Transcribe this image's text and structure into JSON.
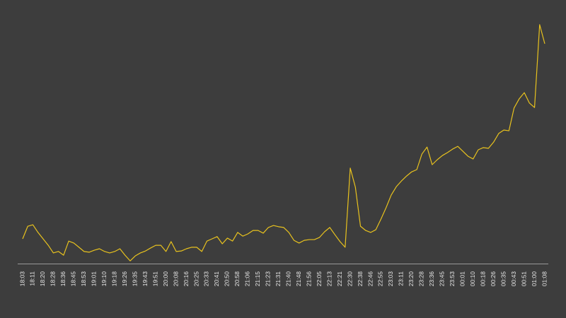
{
  "chart_data": {
    "type": "line",
    "categories": [
      "18:03",
      null,
      "18:11",
      null,
      "18:20",
      null,
      "18:28",
      null,
      "18:36",
      null,
      "18:45",
      null,
      "18:53",
      null,
      "19:01",
      null,
      "19:10",
      null,
      "19:18",
      null,
      "19:26",
      null,
      "19:35",
      null,
      "19:43",
      null,
      "19:51",
      null,
      "20:00",
      null,
      "20:08",
      null,
      "20:16",
      null,
      "20:25",
      null,
      "20:33",
      null,
      "20:41",
      null,
      "20:50",
      null,
      "20:58",
      null,
      "21:06",
      null,
      "21:15",
      null,
      "21:23",
      null,
      "21:31",
      null,
      "21:40",
      null,
      "21:48",
      null,
      "21:56",
      null,
      "22:05",
      null,
      "22:13",
      null,
      "22:21",
      null,
      "22:30",
      null,
      "22:38",
      null,
      "22:46",
      null,
      "22:55",
      null,
      "23:03",
      null,
      "23:11",
      null,
      "23:20",
      null,
      "23:28",
      null,
      "23:36",
      null,
      "23:45",
      null,
      "23:53",
      null,
      "00:01",
      null,
      "00:10",
      null,
      "00:18",
      null,
      "00:26",
      null,
      "00:35",
      null,
      "00:43",
      null,
      "00:51",
      null,
      "01:00",
      null,
      "01:08"
    ],
    "values": [
      10,
      15.1,
      15.7,
      12.6,
      10,
      7.4,
      4.3,
      4.9,
      3.4,
      9.1,
      8.3,
      6.6,
      4.9,
      4.6,
      5.4,
      6,
      4.9,
      4.3,
      4.9,
      6,
      3.4,
      1.1,
      3.1,
      4.3,
      5.1,
      6.3,
      7.4,
      7.4,
      4.9,
      8.9,
      4.9,
      5.1,
      6,
      6.6,
      6.6,
      4.9,
      9.1,
      10,
      10.9,
      8,
      10.3,
      9.1,
      12.6,
      11.1,
      12,
      13.4,
      13.4,
      12.3,
      14.6,
      15.4,
      14.9,
      14.6,
      12.6,
      9.4,
      8.3,
      9.4,
      9.7,
      9.7,
      10.6,
      12.9,
      14.6,
      11.7,
      8.9,
      6.6,
      38.6,
      30.9,
      15.1,
      13.4,
      12.6,
      13.7,
      18,
      22.6,
      27.7,
      31.1,
      33.4,
      35.4,
      37.1,
      38,
      44.3,
      47.1,
      40,
      42,
      43.7,
      44.9,
      46.3,
      47.4,
      45.4,
      43.4,
      42.3,
      46,
      46.9,
      46.6,
      49.1,
      52.6,
      54,
      53.7,
      62.9,
      66.6,
      69.1,
      64.9,
      63.1,
      96.6,
      88.9
    ],
    "color": "#e8c21e",
    "ylim": [
      0,
      100
    ]
  }
}
